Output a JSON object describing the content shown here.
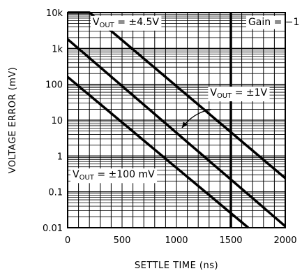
{
  "chart_data": {
    "type": "line",
    "xlabel": "SETTLE TIME (ns)",
    "ylabel": "VOLTAGE ERROR (mV)",
    "xlim": [
      0,
      2000
    ],
    "ylim": [
      0.01,
      10000
    ],
    "y_scale": "log",
    "grid": true,
    "x_ticks": [
      0,
      500,
      1000,
      1500,
      2000
    ],
    "x_tick_labels": [
      "0",
      "500",
      "1000",
      "1500",
      "2000"
    ],
    "y_ticks": [
      0.01,
      0.1,
      1,
      10,
      100,
      1000,
      10000
    ],
    "y_tick_labels": [
      "0.01",
      "0.1",
      "1",
      "10",
      "100",
      "1k",
      "10k"
    ],
    "series": [
      {
        "x": [
          0,
          200,
          2000
        ],
        "y": [
          10000,
          10000,
          0.24
        ]
      },
      {
        "x": [
          0,
          2000
        ],
        "y": [
          1800,
          0.011
        ]
      },
      {
        "x": [
          0,
          1660
        ],
        "y": [
          160,
          0.01
        ]
      }
    ],
    "marker_line_x": 1500,
    "annotations": [
      {
        "main": "V",
        "sub": "OUT",
        "rest": " = ±4.5V",
        "x": 230,
        "y": 4500
      },
      {
        "main": "",
        "sub": "",
        "rest": "Gain = −1",
        "x": 1660,
        "y": 4500
      },
      {
        "main": "V",
        "sub": "OUT",
        "rest": " = ±1V",
        "x": 1310,
        "y": 48
      },
      {
        "main": "V",
        "sub": "OUT",
        "rest": " = ±100 mV",
        "x": 45,
        "y": 0.25
      }
    ]
  }
}
